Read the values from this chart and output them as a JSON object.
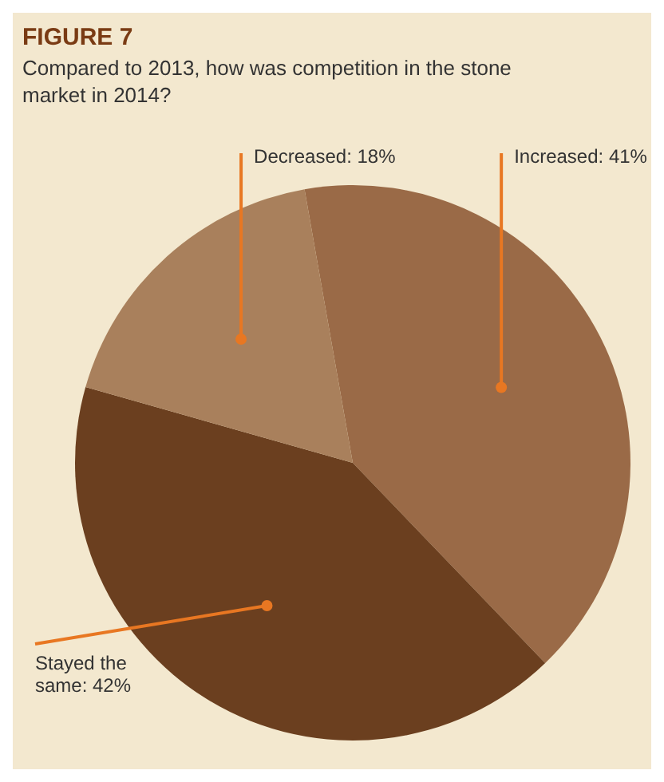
{
  "chart_data": {
    "type": "pie",
    "title": "FIGURE 7",
    "subtitle": "Compared to 2013, how was competition in the stone market in 2014?",
    "categories": [
      "Increased",
      "Stayed the same",
      "Decreased"
    ],
    "values": [
      41,
      42,
      18
    ],
    "value_labels": [
      "41%",
      "42%",
      "18%"
    ],
    "colors": [
      "#9a6a47",
      "#6b3f1f",
      "#a9805c"
    ]
  }
}
